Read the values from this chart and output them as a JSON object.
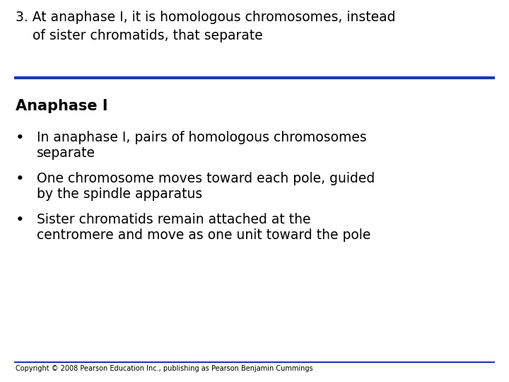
{
  "title_line1": "3. At anaphase I, it is homologous chromosomes, instead",
  "title_line2": "    of sister chromatids, that separate",
  "blue_line_color": "#1a3aaa",
  "section_heading": "Anaphase I",
  "bullet_points": [
    [
      "In anaphase I, pairs of homologous chromosomes",
      "separate"
    ],
    [
      "One chromosome moves toward each pole, guided",
      "by the spindle apparatus"
    ],
    [
      "Sister chromatids remain attached at the",
      "centromere and move as one unit toward the pole"
    ]
  ],
  "copyright": "Copyright © 2008 Pearson Education Inc., publishing as Pearson Benjamin Cummings",
  "bg_color": "#ffffff",
  "text_color": "#000000",
  "title_fontsize": 13.5,
  "heading_fontsize": 15,
  "body_fontsize": 13.5,
  "copyright_fontsize": 7
}
